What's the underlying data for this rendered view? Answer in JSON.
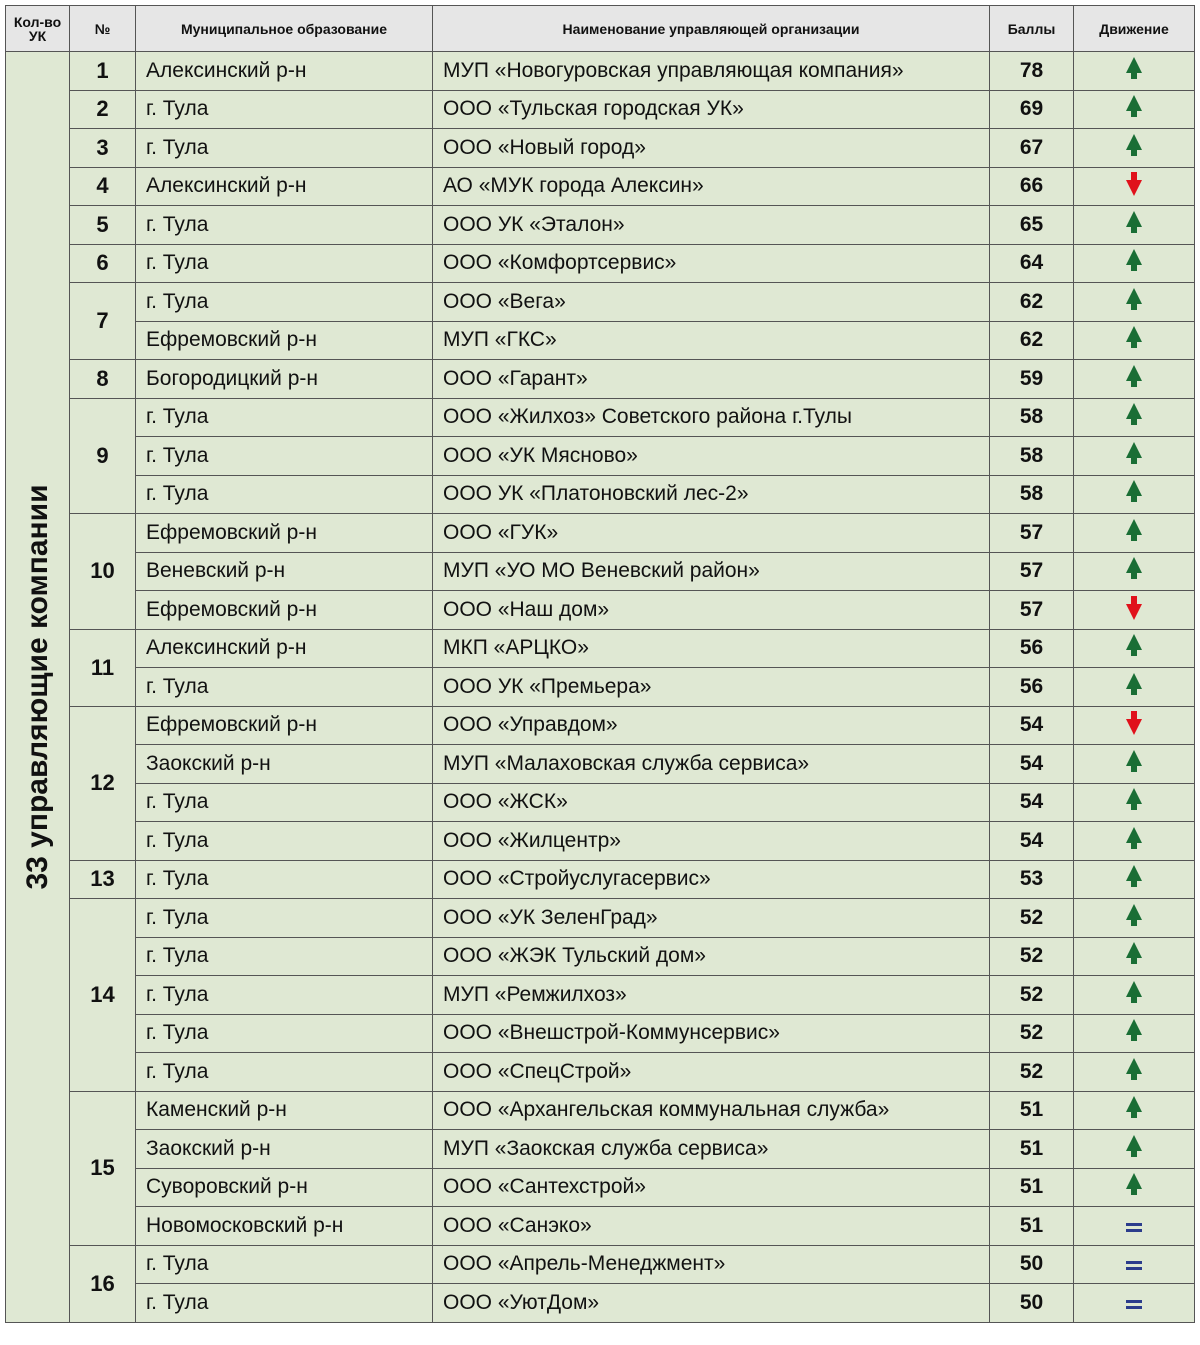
{
  "header": {
    "count": "Кол-во УК",
    "num": "№",
    "municipality": "Муниципальное образование",
    "organization": "Наименование управляющей организации",
    "score": "Баллы",
    "movement": "Движение"
  },
  "side_label": "33 управляющие компании",
  "colors": {
    "up": "#1a6e35",
    "down": "#e0111b",
    "same": "#2b3c8c",
    "row_bg": "#dfe8d3",
    "header_bg": "#e6e6e6"
  },
  "groups": [
    {
      "rank": "1",
      "rows": [
        {
          "mun": "Алексинский р-н",
          "org": "МУП «Новогуровская управляющая компания»",
          "score": "78",
          "move": "up"
        }
      ]
    },
    {
      "rank": "2",
      "rows": [
        {
          "mun": "г. Тула",
          "org": "ООО «Тульская городская УК»",
          "score": "69",
          "move": "up"
        }
      ]
    },
    {
      "rank": "3",
      "rows": [
        {
          "mun": "г. Тула",
          "org": "ООО «Новый город»",
          "score": "67",
          "move": "up"
        }
      ]
    },
    {
      "rank": "4",
      "rows": [
        {
          "mun": "Алексинский р-н",
          "org": "АО «МУК города Алексин»",
          "score": "66",
          "move": "down"
        }
      ]
    },
    {
      "rank": "5",
      "rows": [
        {
          "mun": "г. Тула",
          "org": "ООО УК «Эталон»",
          "score": "65",
          "move": "up"
        }
      ]
    },
    {
      "rank": "6",
      "rows": [
        {
          "mun": "г. Тула",
          "org": "ООО «Комфортсервис»",
          "score": "64",
          "move": "up"
        }
      ]
    },
    {
      "rank": "7",
      "rows": [
        {
          "mun": "г. Тула",
          "org": "ООО «Вега»",
          "score": "62",
          "move": "up"
        },
        {
          "mun": "Ефремовский р-н",
          "org": "МУП «ГКС»",
          "score": "62",
          "move": "up"
        }
      ]
    },
    {
      "rank": "8",
      "rows": [
        {
          "mun": "Богородицкий р-н",
          "org": "ООО «Гарант»",
          "score": "59",
          "move": "up"
        }
      ]
    },
    {
      "rank": "9",
      "rows": [
        {
          "mun": "г. Тула",
          "org": "ООО «Жилхоз» Советского района г.Тулы",
          "score": "58",
          "move": "up"
        },
        {
          "mun": "г. Тула",
          "org": "ООО «УК Мясново»",
          "score": "58",
          "move": "up"
        },
        {
          "mun": "г. Тула",
          "org": "ООО УК «Платоновский лес-2»",
          "score": "58",
          "move": "up"
        }
      ]
    },
    {
      "rank": "10",
      "rows": [
        {
          "mun": "Ефремовский р-н",
          "org": "ООО «ГУК»",
          "score": "57",
          "move": "up"
        },
        {
          "mun": "Веневский р-н",
          "org": "МУП «УО МО Веневский район»",
          "score": "57",
          "move": "up"
        },
        {
          "mun": "Ефремовский р-н",
          "org": "ООО «Наш дом»",
          "score": "57",
          "move": "down"
        }
      ]
    },
    {
      "rank": "11",
      "rows": [
        {
          "mun": "Алексинский р-н",
          "org": "МКП «АРЦКО»",
          "score": "56",
          "move": "up"
        },
        {
          "mun": "г. Тула",
          "org": "ООО УК «Премьера»",
          "score": "56",
          "move": "up"
        }
      ]
    },
    {
      "rank": "12",
      "rows": [
        {
          "mun": "Ефремовский р-н",
          "org": "ООО «Управдом»",
          "score": "54",
          "move": "down"
        },
        {
          "mun": "Заокский р-н",
          "org": "МУП «Малаховская служба сервиса»",
          "score": "54",
          "move": "up"
        },
        {
          "mun": "г. Тула",
          "org": "ООО «ЖСК»",
          "score": "54",
          "move": "up"
        },
        {
          "mun": "г. Тула",
          "org": "ООО «Жилцентр»",
          "score": "54",
          "move": "up"
        }
      ]
    },
    {
      "rank": "13",
      "rows": [
        {
          "mun": "г. Тула",
          "org": "ООО «Стройуслугасервис»",
          "score": "53",
          "move": "up"
        }
      ]
    },
    {
      "rank": "14",
      "rows": [
        {
          "mun": "г. Тула",
          "org": "ООО «УК ЗеленГрад»",
          "score": "52",
          "move": "up"
        },
        {
          "mun": "г. Тула",
          "org": "ООО «ЖЭК Тульский дом»",
          "score": "52",
          "move": "up"
        },
        {
          "mun": "г. Тула",
          "org": "МУП «Ремжилхоз»",
          "score": "52",
          "move": "up"
        },
        {
          "mun": "г. Тула",
          "org": "ООО «Внешстрой-Коммунсервис»",
          "score": "52",
          "move": "up"
        },
        {
          "mun": "г. Тула",
          "org": "ООО «СпецСтрой»",
          "score": "52",
          "move": "up"
        }
      ]
    },
    {
      "rank": "15",
      "rows": [
        {
          "mun": "Каменский р-н",
          "org": "ООО «Архангельская коммунальная служба»",
          "score": "51",
          "move": "up"
        },
        {
          "mun": "Заокский р-н",
          "org": "МУП «Заокская служба сервиса»",
          "score": "51",
          "move": "up"
        },
        {
          "mun": "Суворовский р-н",
          "org": "ООО «Сантехстрой»",
          "score": "51",
          "move": "up"
        },
        {
          "mun": "Новомосковский р-н",
          "org": "ООО «Санэко»",
          "score": "51",
          "move": "same"
        }
      ]
    },
    {
      "rank": "16",
      "rows": [
        {
          "mun": "г. Тула",
          "org": "ООО «Апрель-Менеджмент»",
          "score": "50",
          "move": "same"
        },
        {
          "mun": "г. Тула",
          "org": "ООО «УютДом»",
          "score": "50",
          "move": "same"
        }
      ]
    }
  ]
}
